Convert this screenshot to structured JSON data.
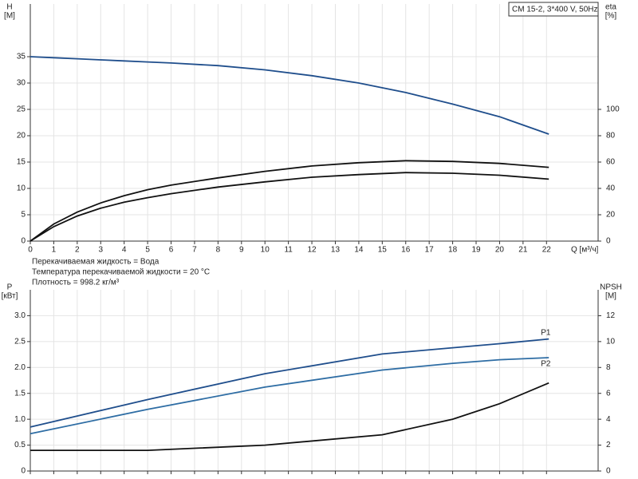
{
  "chart_data": [
    {
      "type": "line",
      "title": "CM 15-2, 3*400 V, 50Hz",
      "xlabel": "Q [м³/ч]",
      "ylabel": [
        "H",
        "[M]"
      ],
      "y2label": [
        "eta",
        "[%]"
      ],
      "annotations": [
        "Перекачиваемая жидкость = Вода",
        "Температура перекачиваемой жидкости = 20 °C",
        "Плотность = 998.2 кг/м³"
      ],
      "x": [
        0,
        1,
        2,
        3,
        4,
        5,
        6,
        8,
        10,
        12,
        14,
        16,
        18,
        20,
        22.1
      ],
      "xlim": [
        0,
        24.2
      ],
      "xticks": [
        0,
        1,
        2,
        3,
        4,
        5,
        6,
        7,
        8,
        9,
        10,
        11,
        12,
        13,
        14,
        15,
        16,
        17,
        18,
        19,
        20,
        21,
        22
      ],
      "ylim": [
        0,
        45
      ],
      "yticks": [
        0,
        5,
        10,
        15,
        20,
        25,
        30,
        35
      ],
      "y2lim": [
        0,
        180
      ],
      "y2ticks": [
        0,
        20,
        40,
        60,
        80,
        100
      ],
      "grid": true,
      "show_xtick_labels": true,
      "series": [
        {
          "color": "#1f4e8c",
          "values": [
            35,
            34.8,
            34.6,
            34.4,
            34.2,
            34.0,
            33.8,
            33.3,
            32.5,
            31.4,
            30.0,
            28.2,
            26.0,
            23.6,
            20.3
          ]
        },
        {
          "color": "#111111",
          "axis": "y2",
          "values": [
            0,
            13,
            22,
            29,
            34.5,
            39,
            42.5,
            48,
            53,
            57,
            59.5,
            61,
            60.5,
            59,
            56
          ]
        },
        {
          "color": "#111111",
          "axis": "y2",
          "values": [
            0,
            11,
            19,
            25,
            29.5,
            33,
            36,
            41,
            45,
            48.5,
            50.5,
            52,
            51.5,
            50,
            47
          ]
        }
      ]
    },
    {
      "type": "line",
      "ylabel": [
        "P",
        "[кВт]"
      ],
      "y2label": [
        "NPSH",
        "[M]"
      ],
      "x": [
        0,
        5,
        10,
        15,
        18,
        20,
        22.1
      ],
      "xlim": [
        0,
        24.2
      ],
      "xticks": [
        0,
        1,
        2,
        3,
        4,
        5,
        6,
        7,
        8,
        9,
        10,
        11,
        12,
        13,
        14,
        15,
        16,
        17,
        18,
        19,
        20,
        21,
        22
      ],
      "ylim": [
        0,
        3.5
      ],
      "yticks": [
        0,
        0.5,
        {
          "value": 1,
          "label": "1.0"
        },
        1.5,
        {
          "value": 2,
          "label": "2.0"
        },
        2.5,
        {
          "value": 3,
          "label": "3.0"
        }
      ],
      "y2lim": [
        0,
        14
      ],
      "y2ticks": [
        0,
        2,
        4,
        6,
        8,
        10,
        12
      ],
      "grid": true,
      "show_xtick_labels": false,
      "series": [
        {
          "name": "P1",
          "color": "#1f4e8c",
          "values": [
            0.85,
            1.38,
            1.88,
            2.26,
            2.38,
            2.46,
            2.55
          ]
        },
        {
          "name": "P2",
          "color": "#2e6da4",
          "values": [
            0.72,
            1.19,
            1.62,
            1.95,
            2.08,
            2.15,
            2.19
          ]
        },
        {
          "color": "#111111",
          "axis": "y2",
          "values": [
            1.6,
            1.6,
            2.0,
            2.8,
            4.0,
            5.2,
            6.8
          ]
        }
      ]
    }
  ]
}
